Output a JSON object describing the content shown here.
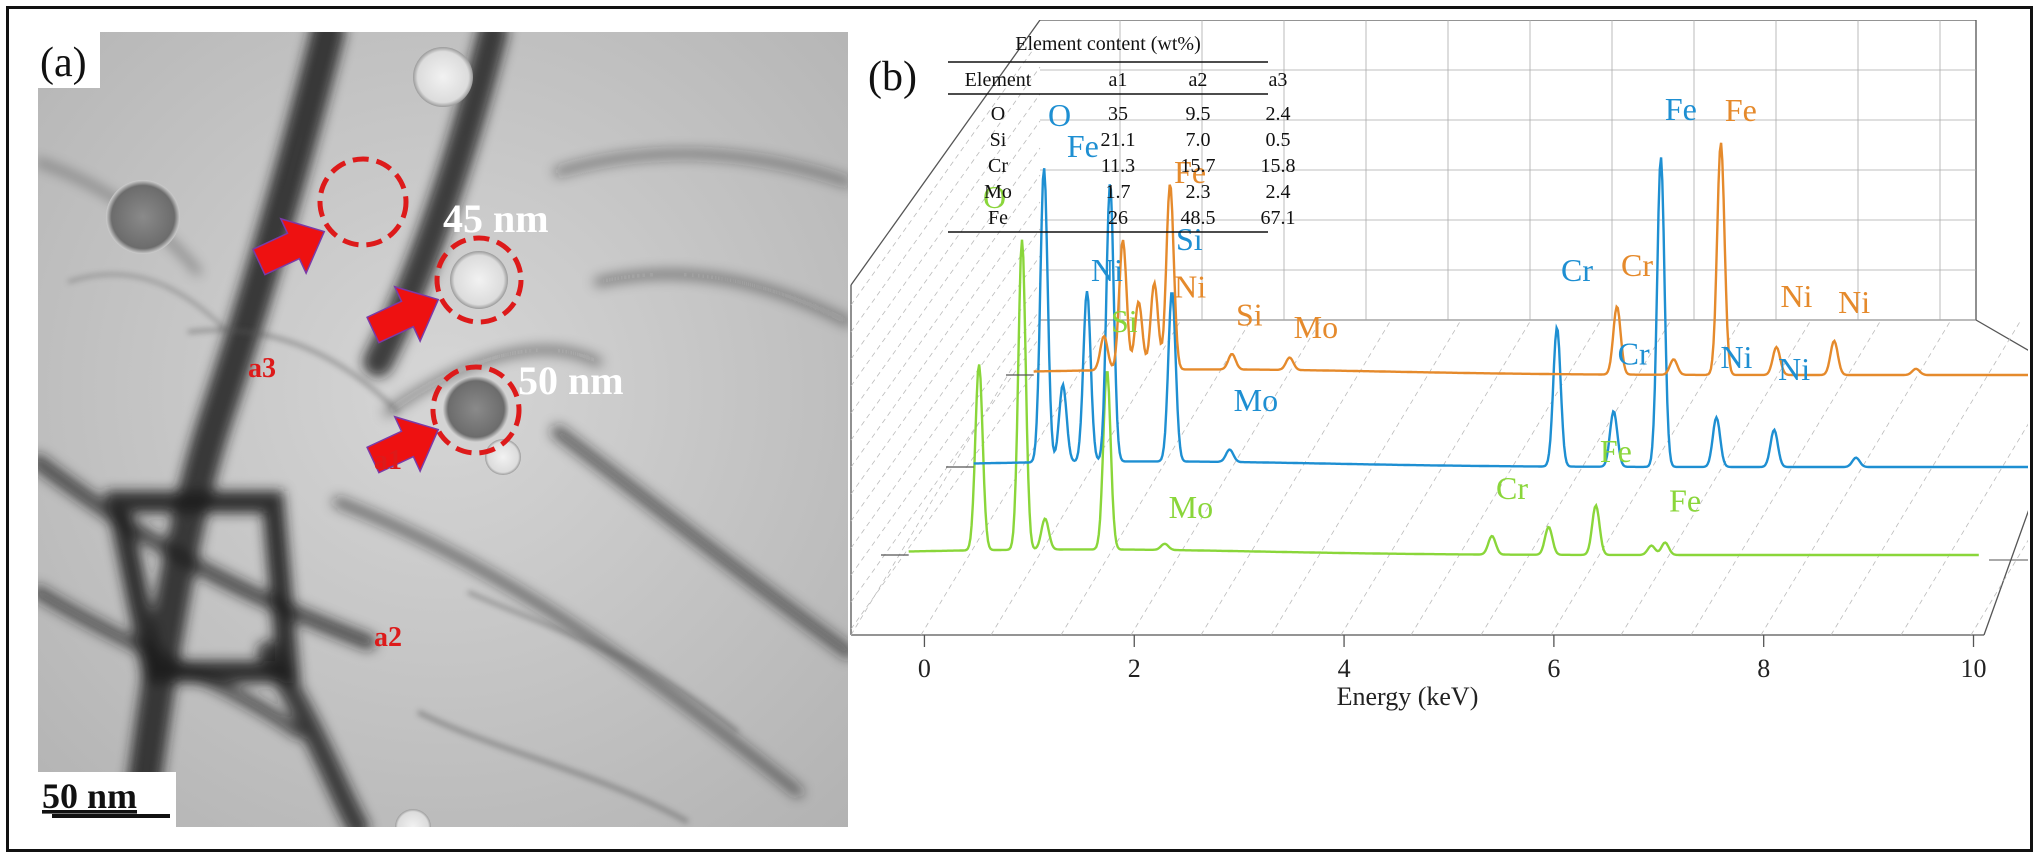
{
  "panel_a": {
    "label": "(a)",
    "scale_bar": "50 nm",
    "sizes": [
      "45 nm",
      "50 nm"
    ],
    "arrows": [
      "a3",
      "a1",
      "a2"
    ],
    "colors": {
      "arrow": "#ee1111",
      "circle": "#dd1a1a",
      "label": "#dd1a1a",
      "size_text": "#ffffff"
    }
  },
  "panel_b": {
    "label": "(b)",
    "table": {
      "title": "Element content (wt%)",
      "headers": [
        "Element",
        "a1",
        "a2",
        "a3"
      ],
      "rows": [
        [
          "O",
          "35",
          "9.5",
          "2.4"
        ],
        [
          "Si",
          "21.1",
          "7.0",
          "0.5"
        ],
        [
          "Cr",
          "11.3",
          "15.7",
          "15.8"
        ],
        [
          "Mo",
          "1.7",
          "2.3",
          "2.4"
        ],
        [
          "Fe",
          "26",
          "48.5",
          "67.1"
        ]
      ]
    }
  },
  "chart_data": {
    "type": "line",
    "xlabel": "Energy (keV)",
    "ylabel": "",
    "xlim": [
      -0.7,
      10.1
    ],
    "xticks": [
      "0",
      "2",
      "4",
      "6",
      "8",
      "10"
    ],
    "grid": true,
    "style": "3D waterfall",
    "series": [
      {
        "name": "a1",
        "color": "#8ad63a",
        "peaks": [
          {
            "x": 0.52,
            "h": 0.6
          },
          {
            "x": 0.93,
            "h": 1.0
          },
          {
            "x": 1.15,
            "h": 0.1
          },
          {
            "x": 1.74,
            "h": 0.58
          },
          {
            "x": 2.29,
            "h": 0.02
          },
          {
            "x": 5.41,
            "h": 0.06
          },
          {
            "x": 5.95,
            "h": 0.09
          },
          {
            "x": 6.4,
            "h": 0.16
          },
          {
            "x": 6.93,
            "h": 0.03
          },
          {
            "x": 7.06,
            "h": 0.04
          }
        ],
        "labels": [
          {
            "text": "O",
            "x": 0.52,
            "y": 1.12
          },
          {
            "text": "Si",
            "x": 1.74,
            "y": 0.72
          },
          {
            "text": "Mo",
            "x": 2.29,
            "y": 0.12
          },
          {
            "text": "Cr",
            "x": 5.41,
            "y": 0.18
          },
          {
            "text": "Fe",
            "x": 6.4,
            "y": 0.3
          },
          {
            "text": "Fe",
            "x": 7.06,
            "y": 0.14
          }
        ]
      },
      {
        "name": "a2",
        "color": "#1e8fd2",
        "peaks": [
          {
            "x": 0.52,
            "h": 0.95
          },
          {
            "x": 0.7,
            "h": 0.25
          },
          {
            "x": 0.93,
            "h": 0.55
          },
          {
            "x": 1.15,
            "h": 0.9
          },
          {
            "x": 1.74,
            "h": 0.55
          },
          {
            "x": 2.29,
            "h": 0.04
          },
          {
            "x": 5.41,
            "h": 0.45
          },
          {
            "x": 5.95,
            "h": 0.18
          },
          {
            "x": 6.4,
            "h": 1.0
          },
          {
            "x": 6.93,
            "h": 0.16
          },
          {
            "x": 7.48,
            "h": 0.12
          },
          {
            "x": 8.26,
            "h": 0.03
          }
        ],
        "labels": [
          {
            "text": "O",
            "x": 0.52,
            "y": 1.1
          },
          {
            "text": "Fe",
            "x": 0.7,
            "y": 1.0
          },
          {
            "text": "Ni",
            "x": 0.93,
            "y": 0.6
          },
          {
            "text": "Si",
            "x": 1.74,
            "y": 0.7
          },
          {
            "text": "Mo",
            "x": 2.29,
            "y": 0.18
          },
          {
            "text": "Cr",
            "x": 5.41,
            "y": 0.6
          },
          {
            "text": "Cr",
            "x": 5.95,
            "y": 0.33
          },
          {
            "text": "Fe",
            "x": 6.4,
            "y": 1.12
          },
          {
            "text": "Ni",
            "x": 6.93,
            "y": 0.32
          },
          {
            "text": "Ni",
            "x": 7.48,
            "y": 0.28
          }
        ]
      },
      {
        "name": "a3",
        "color": "#e58a2c",
        "peaks": [
          {
            "x": 0.52,
            "h": 0.11
          },
          {
            "x": 0.7,
            "h": 0.42
          },
          {
            "x": 0.85,
            "h": 0.22
          },
          {
            "x": 1.0,
            "h": 0.28
          },
          {
            "x": 1.15,
            "h": 0.6
          },
          {
            "x": 1.74,
            "h": 0.05
          },
          {
            "x": 2.29,
            "h": 0.04
          },
          {
            "x": 5.41,
            "h": 0.22
          },
          {
            "x": 5.95,
            "h": 0.05
          },
          {
            "x": 6.4,
            "h": 0.75
          },
          {
            "x": 6.93,
            "h": 0.09
          },
          {
            "x": 7.48,
            "h": 0.11
          },
          {
            "x": 8.26,
            "h": 0.02
          }
        ],
        "labels": [
          {
            "text": "Fe",
            "x": 1.15,
            "y": 0.62
          },
          {
            "text": "Ni",
            "x": 1.15,
            "y": 0.25
          },
          {
            "text": "Si",
            "x": 1.74,
            "y": 0.16
          },
          {
            "text": "Mo",
            "x": 2.29,
            "y": 0.12
          },
          {
            "text": "Fe",
            "x": 6.4,
            "y": 0.82
          },
          {
            "text": "Cr",
            "x": 5.41,
            "y": 0.32
          },
          {
            "text": "Ni",
            "x": 6.93,
            "y": 0.22
          },
          {
            "text": "Ni",
            "x": 7.48,
            "y": 0.2
          }
        ]
      }
    ]
  }
}
